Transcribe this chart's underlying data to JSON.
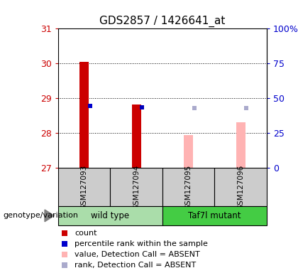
{
  "title": "GDS2857 / 1426641_at",
  "samples": [
    "GSM127093",
    "GSM127094",
    "GSM127095",
    "GSM127096"
  ],
  "ylim": [
    27,
    31
  ],
  "yticks": [
    27,
    28,
    29,
    30,
    31
  ],
  "right_yticks_pct": [
    0,
    25,
    50,
    75,
    100
  ],
  "right_ylabels": [
    "0",
    "25",
    "50",
    "75",
    "100%"
  ],
  "bar_bottom": 27,
  "bar_values": [
    30.05,
    28.83,
    27.95,
    28.32
  ],
  "bar_colors": [
    "#cc0000",
    "#cc0000",
    "#ffb3b3",
    "#ffb3b3"
  ],
  "rank_values": [
    28.78,
    28.73,
    28.72,
    28.72
  ],
  "rank_colors": [
    "#0000cc",
    "#0000bb",
    "#aaaacc",
    "#aaaacc"
  ],
  "bar_width": 0.18,
  "rank_marker_size": 25,
  "sample_area_bg": "#cccccc",
  "group_bg_light": "#aaddaa",
  "group_bg_dark": "#44cc44",
  "left_label_color": "#cc0000",
  "right_label_color": "#0000cc",
  "legend_items": [
    {
      "color": "#cc0000",
      "label": "count"
    },
    {
      "color": "#0000cc",
      "label": "percentile rank within the sample"
    },
    {
      "color": "#ffb3b3",
      "label": "value, Detection Call = ABSENT"
    },
    {
      "color": "#aaaacc",
      "label": "rank, Detection Call = ABSENT"
    }
  ],
  "genotype_label": "genotype/variation",
  "group_info": [
    {
      "name": "wild type",
      "cols": [
        0,
        1
      ]
    },
    {
      "name": "Taf7l mutant",
      "cols": [
        2,
        3
      ]
    }
  ]
}
